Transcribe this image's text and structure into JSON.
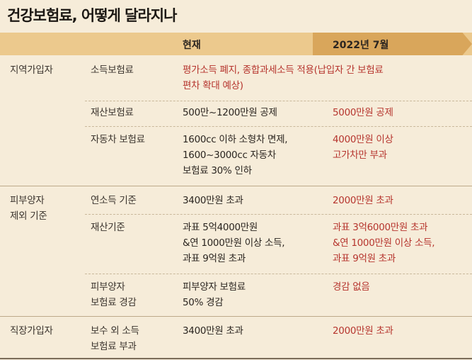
{
  "title": "건강보험료, 어떻게 달라지나",
  "header": {
    "current": "현재",
    "future": "2022년 7월"
  },
  "sections": [
    {
      "name_lines": [
        "지역가입자"
      ],
      "items": [
        {
          "item_lines": [
            "소득보험료"
          ],
          "combined_lines": [
            "평가소득 폐지, 종합과세소득 적용(납입자 간 보험료",
            "편차 확대 예상)"
          ]
        },
        {
          "item_lines": [
            "재산보험료"
          ],
          "current_lines": [
            "500만~1200만원 공제"
          ],
          "future_lines": [
            "5000만원 공제"
          ]
        },
        {
          "item_lines": [
            "자동차 보험료"
          ],
          "current_lines": [
            "1600cc 이하 소형차 면제,",
            "1600~3000cc 자동차",
            "보험료 30% 인하"
          ],
          "future_lines": [
            "4000만원 이상",
            "고가차만 부과"
          ]
        }
      ]
    },
    {
      "name_lines": [
        "피부양자",
        "제외 기준"
      ],
      "items": [
        {
          "item_lines": [
            "연소득 기준"
          ],
          "current_lines": [
            "3400만원 초과"
          ],
          "future_lines": [
            "2000만원 초과"
          ]
        },
        {
          "item_lines": [
            "재산기준"
          ],
          "current_lines": [
            "과표 5억4000만원",
            "&연 1000만원 이상 소득,",
            "과표 9억원 초과"
          ],
          "future_lines": [
            "과표 3억6000만원 초과",
            "&연 1000만원 이상 소득,",
            "과표 9억원 초과"
          ]
        },
        {
          "item_lines": [
            "피부양자",
            "보험료 경감"
          ],
          "current_lines": [
            "피부양자 보험료",
            "50% 경감"
          ],
          "future_lines": [
            "경감 없음"
          ]
        }
      ]
    },
    {
      "name_lines": [
        "직장가입자"
      ],
      "items": [
        {
          "item_lines": [
            "보수 외 소득",
            "보험료 부과"
          ],
          "current_lines": [
            "3400만원 초과"
          ],
          "future_lines": [
            "2000만원 초과"
          ]
        }
      ]
    }
  ]
}
